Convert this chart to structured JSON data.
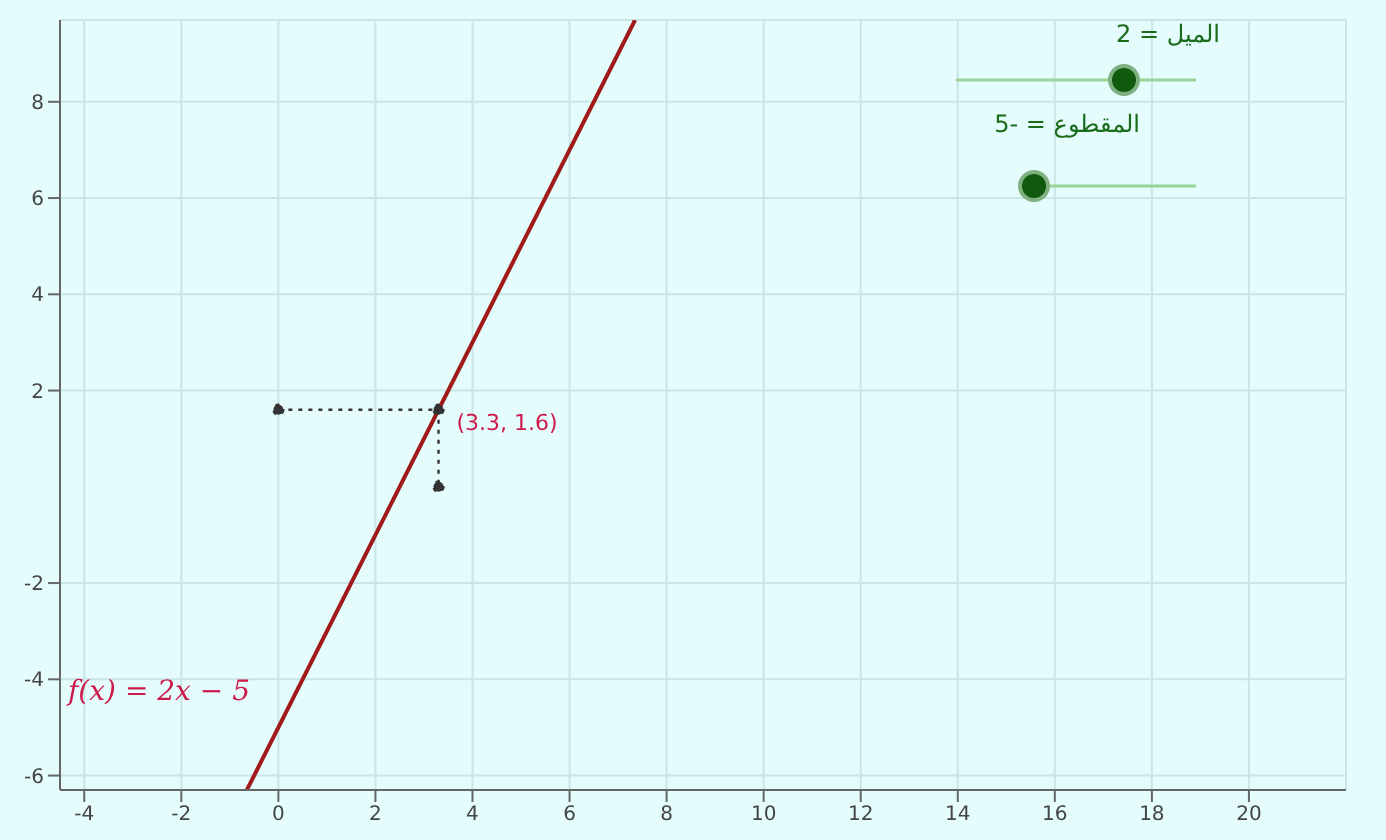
{
  "chart_data": {
    "type": "line",
    "xlim": [
      -4.5,
      22
    ],
    "ylim": [
      -6.3,
      9.7
    ],
    "xticks": [
      -4,
      -2,
      0,
      2,
      4,
      6,
      8,
      10,
      12,
      14,
      16,
      18,
      20
    ],
    "yticks": [
      -6,
      -4,
      -2,
      2,
      4,
      6,
      8
    ],
    "grid": true,
    "series": [
      {
        "x": [
          -0.65,
          7.35
        ],
        "values": [
          -6.3,
          9.7
        ],
        "color": "#a01a1a",
        "marker": "none",
        "line_style": "solid"
      },
      {
        "x": [
          0,
          3.3,
          3.3
        ],
        "values": [
          1.6,
          1.6,
          0
        ],
        "color": "#333333",
        "marker": "circle",
        "line_style": "dotted"
      }
    ],
    "annotations": [
      "الميل = 2",
      "المقطوع = -5",
      "f(x) = 2x − 5",
      {
        "text": "(3.3, 1.6)",
        "x": 3.3,
        "y": 1.6
      }
    ]
  }
}
